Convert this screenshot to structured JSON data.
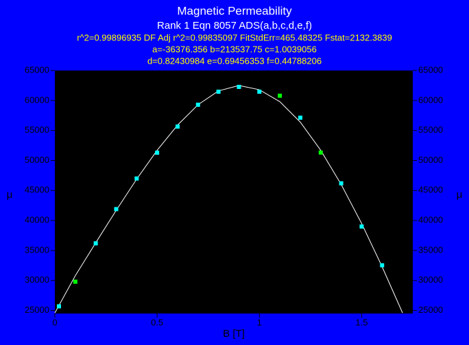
{
  "chart_data": {
    "type": "scatter",
    "title": "Magnetic Permeability",
    "subtitle": [
      "Rank 1  Eqn 8057  ADS(a,b,c,d,e,f)",
      "r^2=0.99896935  DF Adj r^2=0.99835097  FitStdErr=465.48325  Fstat=2132.3839",
      "a=-36376.356 b=213537.75 c=1.0039056",
      "d=0.82430984 e=0.69456353 f=0.44788206"
    ],
    "x_label": "B [T]",
    "y_label": "μ",
    "y2_label": "μ",
    "xlim": [
      0,
      1.75
    ],
    "xticks": [
      0,
      0.5,
      1,
      1.5
    ],
    "ylim": [
      24500,
      65000
    ],
    "yticks": [
      25000,
      30000,
      35000,
      40000,
      45000,
      50000,
      55000,
      60000,
      65000
    ],
    "y2lim": [
      24500,
      65000
    ],
    "y2ticks": [
      25000,
      30000,
      35000,
      40000,
      45000,
      50000,
      55000,
      60000,
      65000
    ],
    "series": [
      {
        "x": [
          0.02,
          0.1,
          0.2,
          0.3,
          0.4,
          0.5,
          0.6,
          0.7,
          0.8,
          0.9,
          1.0,
          1.1,
          1.2,
          1.3,
          1.4,
          1.5,
          1.6
        ],
        "values": [
          25700,
          29800,
          36200,
          41900,
          47000,
          51300,
          55660,
          59300,
          61470,
          62270,
          61470,
          60800,
          57140,
          51330,
          46200,
          39000,
          32540
        ],
        "colors": [
          "#00ffff",
          "#00ff00",
          "#00ffff",
          "#00ffff",
          "#00ffff",
          "#00ffff",
          "#00ffff",
          "#00ffff",
          "#00ffff",
          "#00ffff",
          "#00ffff",
          "#00ff00",
          "#00ffff",
          "#00ff00",
          "#00ffff",
          "#00ffff",
          "#00ffff"
        ]
      },
      {
        "type": "line",
        "color": "#ffffff",
        "x": [
          0,
          0.1,
          0.2,
          0.3,
          0.4,
          0.5,
          0.6,
          0.7,
          0.8,
          0.9,
          1.0,
          1.1,
          1.2,
          1.3,
          1.4,
          1.5,
          1.6,
          1.7
        ],
        "values": [
          24600,
          30800,
          36300,
          41700,
          46900,
          51700,
          55900,
          59300,
          61600,
          62500,
          61800,
          59800,
          56400,
          51700,
          46000,
          39500,
          32300,
          24600
        ]
      }
    ]
  }
}
